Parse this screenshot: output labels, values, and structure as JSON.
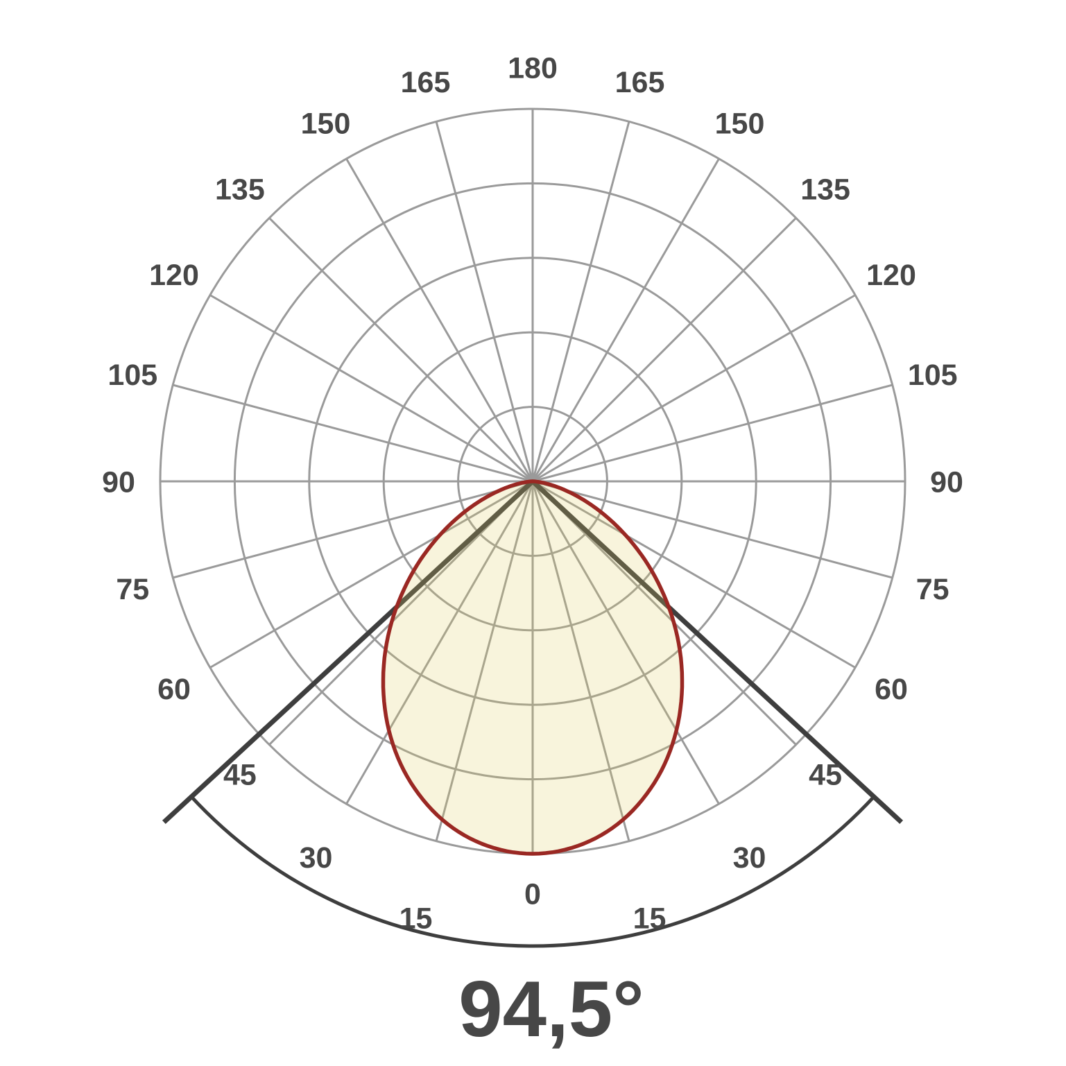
{
  "figure": {
    "beam_angle_label": "94,5°"
  },
  "colors": {
    "background": "#ffffff",
    "grid": "#9a9a9a",
    "curve_stroke": "#9a2823",
    "curve_fill": "rgba(221,207,96,0.22)",
    "beam_marker": "#3e3e3e",
    "labels": "#474747",
    "title_text": "#474747"
  },
  "chart_data": {
    "type": "polar",
    "subtype": "photometric-intensity-distribution",
    "title": "94,5°",
    "beam_angle_deg": 94.5,
    "grid_on": true,
    "legend_position": "none",
    "rings_count": 5,
    "ring_values_pct": [
      20,
      40,
      60,
      80,
      100
    ],
    "radial_line_step_deg": 15,
    "angle_tick_step_deg": 15,
    "angle_tick_labels": [
      "0",
      "15",
      "30",
      "45",
      "60",
      "75",
      "90",
      "105",
      "120",
      "135",
      "150",
      "165",
      "180"
    ],
    "angle_labels_mirrored_both_sides": true,
    "intensity_max_pct": 100,
    "intensity_curve_pct_by_angle_deg": [
      [
        -90,
        0
      ],
      [
        -85,
        1.2
      ],
      [
        -80,
        4.3
      ],
      [
        -75,
        8.8
      ],
      [
        -70,
        14.5
      ],
      [
        -65,
        21.2
      ],
      [
        -60,
        28.7
      ],
      [
        -55,
        36.8
      ],
      [
        -50,
        45.1
      ],
      [
        -45,
        53.6
      ],
      [
        -40,
        61.9
      ],
      [
        -35,
        69.8
      ],
      [
        -30,
        77.2
      ],
      [
        -25,
        83.8
      ],
      [
        -20,
        89.4
      ],
      [
        -15,
        94.0
      ],
      [
        -10,
        97.3
      ],
      [
        -5,
        99.3
      ],
      [
        0,
        100
      ],
      [
        5,
        99.3
      ],
      [
        10,
        97.3
      ],
      [
        15,
        94.0
      ],
      [
        20,
        89.4
      ],
      [
        25,
        83.8
      ],
      [
        30,
        77.2
      ],
      [
        35,
        69.8
      ],
      [
        40,
        61.9
      ],
      [
        45,
        53.6
      ],
      [
        50,
        45.1
      ],
      [
        55,
        36.8
      ],
      [
        60,
        28.7
      ],
      [
        65,
        21.2
      ],
      [
        70,
        14.5
      ],
      [
        75,
        8.8
      ],
      [
        80,
        4.3
      ],
      [
        85,
        1.2
      ],
      [
        90,
        0
      ]
    ],
    "half_beam_intensity_pct": 50
  }
}
